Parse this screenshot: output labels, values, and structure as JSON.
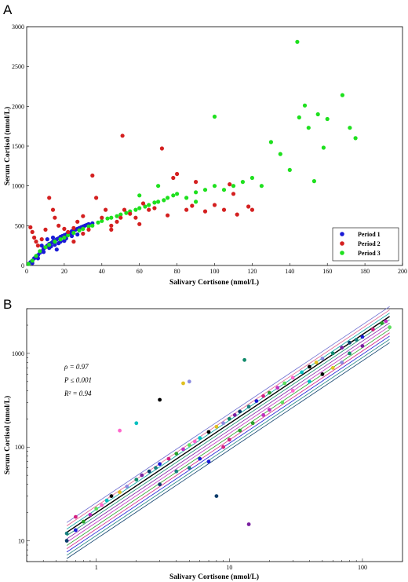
{
  "chart_data": [
    {
      "type": "scatter",
      "panel": "A",
      "xlabel": "Salivary Cortisone (nmol/L)",
      "ylabel": "Serum Cortisol (nmol/L)",
      "xlim": [
        0,
        200
      ],
      "ylim": [
        0,
        3000
      ],
      "xticks": [
        "0",
        "20",
        "40",
        "60",
        "80",
        "100",
        "120",
        "140",
        "160",
        "180",
        "200"
      ],
      "yticks": [
        "0",
        "500",
        "1000",
        "1500",
        "2000",
        "2500",
        "3000"
      ],
      "grid": false,
      "legend_position": "bottom-right",
      "series": [
        {
          "name": "Period 1",
          "color": "#1a1ad6",
          "points": [
            [
              1,
              20
            ],
            [
              2,
              40
            ],
            [
              3,
              60
            ],
            [
              4,
              90
            ],
            [
              5,
              110
            ],
            [
              6,
              130
            ],
            [
              7,
              160
            ],
            [
              8,
              180
            ],
            [
              9,
              210
            ],
            [
              10,
              230
            ],
            [
              11,
              250
            ],
            [
              12,
              270
            ],
            [
              13,
              280
            ],
            [
              14,
              300
            ],
            [
              15,
              310
            ],
            [
              16,
              330
            ],
            [
              17,
              340
            ],
            [
              18,
              360
            ],
            [
              19,
              370
            ],
            [
              20,
              380
            ],
            [
              21,
              390
            ],
            [
              22,
              400
            ],
            [
              23,
              410
            ],
            [
              24,
              430
            ],
            [
              25,
              440
            ],
            [
              26,
              450
            ],
            [
              27,
              460
            ],
            [
              28,
              470
            ],
            [
              29,
              480
            ],
            [
              30,
              490
            ],
            [
              31,
              500
            ],
            [
              32,
              510
            ],
            [
              33,
              520
            ],
            [
              35,
              530
            ],
            [
              3,
              30
            ],
            [
              6,
              90
            ],
            [
              9,
              170
            ],
            [
              12,
              220
            ],
            [
              15,
              260
            ],
            [
              18,
              300
            ],
            [
              21,
              340
            ],
            [
              8,
              250
            ],
            [
              11,
              330
            ],
            [
              14,
              350
            ],
            [
              17,
              280
            ],
            [
              13,
              240
            ],
            [
              20,
              310
            ],
            [
              24,
              370
            ],
            [
              27,
              390
            ],
            [
              16,
              200
            ]
          ]
        },
        {
          "name": "Period 2",
          "color": "#d42020",
          "points": [
            [
              2,
              480
            ],
            [
              3,
              420
            ],
            [
              4,
              350
            ],
            [
              5,
              300
            ],
            [
              6,
              250
            ],
            [
              8,
              330
            ],
            [
              10,
              450
            ],
            [
              12,
              850
            ],
            [
              14,
              700
            ],
            [
              15,
              600
            ],
            [
              17,
              500
            ],
            [
              20,
              460
            ],
            [
              22,
              420
            ],
            [
              25,
              470
            ],
            [
              27,
              550
            ],
            [
              30,
              620
            ],
            [
              35,
              1130
            ],
            [
              37,
              850
            ],
            [
              40,
              600
            ],
            [
              42,
              700
            ],
            [
              45,
              500
            ],
            [
              48,
              550
            ],
            [
              51,
              1630
            ],
            [
              52,
              700
            ],
            [
              55,
              650
            ],
            [
              58,
              600
            ],
            [
              60,
              520
            ],
            [
              62,
              780
            ],
            [
              65,
              700
            ],
            [
              68,
              720
            ],
            [
              72,
              1470
            ],
            [
              75,
              630
            ],
            [
              78,
              1100
            ],
            [
              80,
              1150
            ],
            [
              85,
              700
            ],
            [
              88,
              750
            ],
            [
              90,
              1050
            ],
            [
              95,
              680
            ],
            [
              100,
              760
            ],
            [
              105,
              700
            ],
            [
              108,
              1020
            ],
            [
              110,
              900
            ],
            [
              112,
              640
            ],
            [
              118,
              740
            ],
            [
              120,
              700
            ],
            [
              30,
              400
            ],
            [
              25,
              300
            ],
            [
              33,
              450
            ],
            [
              45,
              450
            ],
            [
              50,
              600
            ]
          ]
        },
        {
          "name": "Period 3",
          "color": "#1ee01e",
          "points": [
            [
              1,
              20
            ],
            [
              3,
              60
            ],
            [
              5,
              120
            ],
            [
              7,
              180
            ],
            [
              10,
              230
            ],
            [
              12,
              260
            ],
            [
              15,
              300
            ],
            [
              18,
              330
            ],
            [
              20,
              350
            ],
            [
              22,
              380
            ],
            [
              25,
              410
            ],
            [
              28,
              440
            ],
            [
              30,
              460
            ],
            [
              33,
              490
            ],
            [
              35,
              500
            ],
            [
              38,
              540
            ],
            [
              40,
              560
            ],
            [
              43,
              590
            ],
            [
              45,
              600
            ],
            [
              48,
              620
            ],
            [
              50,
              640
            ],
            [
              53,
              660
            ],
            [
              55,
              680
            ],
            [
              58,
              700
            ],
            [
              60,
              720
            ],
            [
              63,
              740
            ],
            [
              65,
              760
            ],
            [
              68,
              790
            ],
            [
              70,
              800
            ],
            [
              73,
              820
            ],
            [
              75,
              850
            ],
            [
              78,
              880
            ],
            [
              80,
              900
            ],
            [
              85,
              850
            ],
            [
              90,
              920
            ],
            [
              95,
              950
            ],
            [
              100,
              1000
            ],
            [
              100,
              1870
            ],
            [
              105,
              950
            ],
            [
              110,
              1000
            ],
            [
              115,
              1050
            ],
            [
              120,
              1100
            ],
            [
              125,
              1000
            ],
            [
              130,
              1550
            ],
            [
              135,
              1400
            ],
            [
              140,
              1200
            ],
            [
              144,
              2810
            ],
            [
              145,
              1860
            ],
            [
              148,
              2010
            ],
            [
              150,
              1730
            ],
            [
              153,
              1060
            ],
            [
              155,
              1900
            ],
            [
              158,
              1480
            ],
            [
              160,
              1840
            ],
            [
              168,
              2140
            ],
            [
              172,
              1730
            ],
            [
              175,
              1600
            ],
            [
              90,
              800
            ],
            [
              70,
              1000
            ],
            [
              60,
              880
            ]
          ]
        }
      ]
    },
    {
      "type": "scatter",
      "panel": "B",
      "xlabel": "Salivary Cortisone (nmol/L)",
      "ylabel": "Serum Cortisol (nmol/L)",
      "xscale": "log",
      "yscale": "log",
      "xlim": [
        0.3,
        200
      ],
      "ylim": [
        6,
        3000
      ],
      "xticks": [
        "1",
        "10",
        "100"
      ],
      "yticks": [
        "10",
        "100",
        "1000"
      ],
      "annotations": [
        "ρ = 0.97",
        "P ≤ 0.001",
        "R² = 0.94"
      ],
      "series_note": "multiple colored series (individual subjects) with fitted regression lines",
      "points": [
        [
          0.6,
          10
        ],
        [
          0.6,
          12
        ],
        [
          0.7,
          13
        ],
        [
          0.7,
          18
        ],
        [
          0.8,
          16
        ],
        [
          0.9,
          19
        ],
        [
          1.0,
          22
        ],
        [
          1.1,
          24
        ],
        [
          1.2,
          27
        ],
        [
          1.3,
          30
        ],
        [
          1.5,
          33
        ],
        [
          1.7,
          38
        ],
        [
          2.0,
          45
        ],
        [
          2.2,
          50
        ],
        [
          2.5,
          55
        ],
        [
          2.8,
          60
        ],
        [
          3.0,
          66
        ],
        [
          3.5,
          75
        ],
        [
          4.0,
          85
        ],
        [
          4.5,
          95
        ],
        [
          5.0,
          105
        ],
        [
          5.5,
          115
        ],
        [
          6.0,
          125
        ],
        [
          7.0,
          145
        ],
        [
          8.0,
          165
        ],
        [
          9.0,
          180
        ],
        [
          10,
          200
        ],
        [
          11,
          220
        ],
        [
          12,
          240
        ],
        [
          14,
          270
        ],
        [
          16,
          310
        ],
        [
          18,
          350
        ],
        [
          20,
          380
        ],
        [
          23,
          430
        ],
        [
          26,
          480
        ],
        [
          30,
          550
        ],
        [
          35,
          630
        ],
        [
          40,
          720
        ],
        [
          45,
          800
        ],
        [
          50,
          880
        ],
        [
          60,
          1000
        ],
        [
          70,
          1150
        ],
        [
          80,
          1300
        ],
        [
          90,
          1400
        ],
        [
          100,
          1500
        ],
        [
          120,
          1800
        ],
        [
          140,
          2100
        ],
        [
          150,
          2200
        ],
        [
          160,
          1900
        ],
        [
          1.5,
          150
        ],
        [
          2.0,
          180
        ],
        [
          3.0,
          320
        ],
        [
          4.5,
          480
        ],
        [
          5.0,
          500
        ],
        [
          13,
          850
        ],
        [
          14,
          15
        ],
        [
          8,
          30
        ],
        [
          5,
          60
        ],
        [
          7,
          70
        ],
        [
          10,
          120
        ],
        [
          12,
          150
        ],
        [
          20,
          250
        ],
        [
          25,
          300
        ],
        [
          30,
          400
        ],
        [
          40,
          500
        ],
        [
          50,
          600
        ],
        [
          60,
          700
        ],
        [
          70,
          800
        ],
        [
          80,
          1000
        ],
        [
          100,
          1200
        ],
        [
          3,
          40
        ],
        [
          4,
          55
        ],
        [
          6,
          75
        ],
        [
          9,
          100
        ],
        [
          15,
          180
        ],
        [
          18,
          220
        ]
      ]
    }
  ]
}
